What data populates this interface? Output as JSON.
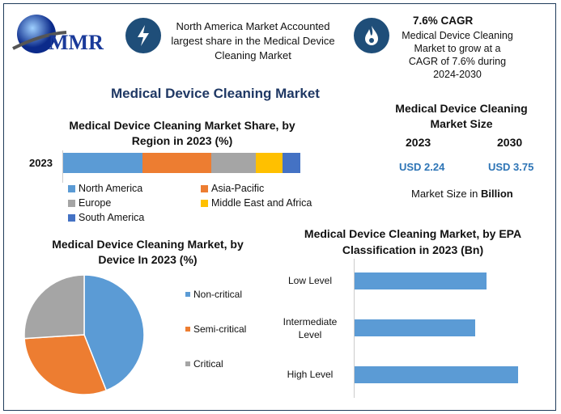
{
  "logo": {
    "text": "MMR"
  },
  "highlights": [
    {
      "icon": "lightning-icon",
      "text": "North America Market Accounted largest share in the Medical Device Cleaning Market"
    },
    {
      "icon": "flame-icon",
      "title": "7.6% CAGR",
      "text": "Medical Device Cleaning Market to grow at a CAGR of 7.6% during 2024-2030"
    }
  ],
  "main_title": "Medical Device Cleaning Market",
  "market_size": {
    "title": "Medical Device Cleaning Market Size",
    "years": [
      "2023",
      "2030"
    ],
    "values": [
      "USD 2.24",
      "USD 3.75"
    ],
    "note_prefix": "Market Size in ",
    "note_bold": "Billion"
  },
  "colors": {
    "north_america": "#5b9bd5",
    "asia_pacific": "#ed7d31",
    "europe": "#a5a5a5",
    "mea": "#ffc000",
    "south_america": "#4472c4",
    "frame": "#1f3b5a",
    "accent": "#1f4e79"
  },
  "chart_data": [
    {
      "type": "bar",
      "orientation": "horizontal",
      "stacked": true,
      "title": "Medical Device Cleaning Market Share, by Region in 2023 (%)",
      "categories": [
        "2023"
      ],
      "series": [
        {
          "name": "North America",
          "values": [
            33.4
          ]
        },
        {
          "name": "Asia-Pacific",
          "values": [
            29.0
          ]
        },
        {
          "name": "Europe",
          "values": [
            18.8
          ]
        },
        {
          "name": "Middle East and Africa",
          "values": [
            11.3
          ]
        },
        {
          "name": "South America",
          "values": [
            7.5
          ]
        }
      ],
      "legend": "bottom"
    },
    {
      "type": "pie",
      "title": "Medical Device Cleaning Market, by Device In 2023 (%)",
      "labels": [
        "Non-critical",
        "Semi-critical",
        "Critical"
      ],
      "values": [
        44,
        30,
        26
      ],
      "colors": [
        "#5b9bd5",
        "#ed7d31",
        "#a5a5a5"
      ],
      "legend": "right"
    },
    {
      "type": "bar",
      "orientation": "horizontal",
      "title": "Medical Device Cleaning Market, by EPA Classification in 2023 (Bn)",
      "categories": [
        "Low Level",
        "Intermediate Level",
        "High Level"
      ],
      "values": [
        0.71,
        0.65,
        0.88
      ],
      "color": "#5b9bd5"
    }
  ]
}
